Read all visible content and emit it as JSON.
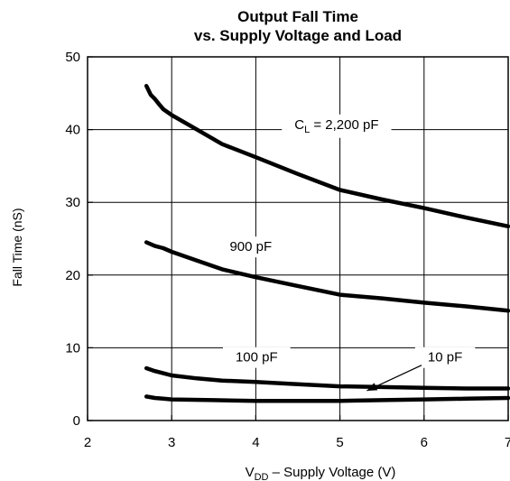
{
  "chart_data": {
    "type": "line",
    "title": "Output Fall Time",
    "subtitle": "vs. Supply Voltage and Load",
    "xlabel": {
      "main": "V",
      "sub": "DD",
      "rest": " – Supply Voltage (V)"
    },
    "ylabel": "Fall Time (nS)",
    "xlim": [
      2,
      7
    ],
    "ylim": [
      0,
      50
    ],
    "xticks": [
      "2",
      "3",
      "4",
      "5",
      "6",
      "7"
    ],
    "yticks": [
      "0",
      "10",
      "20",
      "30",
      "40",
      "50"
    ],
    "grid": true,
    "series": [
      {
        "name": "C_L = 2,200 pF",
        "x": [
          2.7,
          2.75,
          2.8,
          2.85,
          2.9,
          3.0,
          3.3,
          3.6,
          4.0,
          4.5,
          5.0,
          5.5,
          6.0,
          6.5,
          7.0
        ],
        "y": [
          46,
          44.8,
          44.2,
          43.5,
          42.8,
          42.0,
          40.0,
          38.0,
          36.2,
          33.9,
          31.7,
          30.4,
          29.2,
          27.9,
          26.7
        ]
      },
      {
        "name": "900 pF",
        "x": [
          2.7,
          2.8,
          2.9,
          3.0,
          3.3,
          3.6,
          4.0,
          4.5,
          5.0,
          5.5,
          6.0,
          6.5,
          7.0
        ],
        "y": [
          24.5,
          24.0,
          23.7,
          23.2,
          22.0,
          20.8,
          19.7,
          18.5,
          17.3,
          16.8,
          16.2,
          15.7,
          15.1
        ]
      },
      {
        "name": "100 pF",
        "x": [
          2.7,
          2.8,
          2.9,
          3.0,
          3.3,
          3.6,
          4.0,
          4.5,
          5.0,
          5.5,
          6.0,
          6.5,
          7.0
        ],
        "y": [
          7.2,
          6.8,
          6.5,
          6.2,
          5.8,
          5.5,
          5.3,
          5.0,
          4.7,
          4.6,
          4.5,
          4.4,
          4.4
        ]
      },
      {
        "name": "10 pF",
        "x": [
          2.7,
          2.8,
          2.9,
          3.0,
          3.5,
          4.0,
          4.5,
          5.0,
          5.5,
          6.0,
          6.5,
          7.0
        ],
        "y": [
          3.3,
          3.1,
          3.0,
          2.9,
          2.8,
          2.7,
          2.7,
          2.7,
          2.8,
          2.9,
          3.0,
          3.1
        ]
      }
    ],
    "annotations": [
      {
        "series": "C_L = 2,200 pF",
        "main": "C",
        "sub": "L",
        "rest": " = 2,200 pF",
        "x": 4.96,
        "y": 40.1
      },
      {
        "series": "900 pF",
        "text": "900 pF",
        "x": 3.94,
        "y": 23.3
      },
      {
        "series": "100 pF",
        "text": "100 pF",
        "x": 4.01,
        "y": 8.1
      },
      {
        "series": "10 pF",
        "text": "10 pF",
        "x": 6.25,
        "y": 8.1,
        "arrow_to": [
          5.32,
          4.1
        ]
      }
    ]
  }
}
